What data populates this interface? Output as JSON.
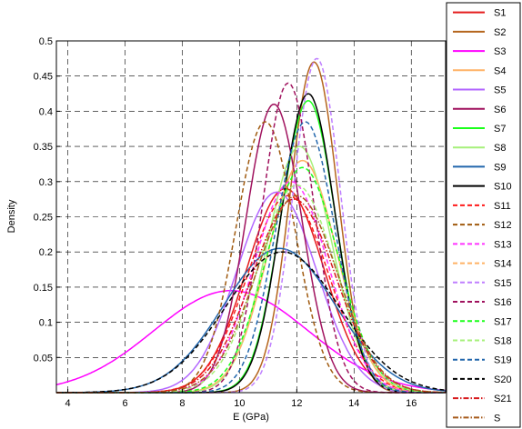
{
  "chart_data": {
    "type": "line",
    "xlabel": "E (GPa)",
    "ylabel": "Density",
    "xlim": [
      3.6,
      17.2
    ],
    "ylim": [
      0,
      0.5
    ],
    "xticks": [
      4,
      6,
      8,
      10,
      12,
      14,
      16
    ],
    "yticks": [
      0.05,
      0.1,
      0.15,
      0.2,
      0.25,
      0.3,
      0.35,
      0.4,
      0.45,
      0.5
    ],
    "xtick_labels": [
      "4",
      "6",
      "8",
      "10",
      "12",
      "14",
      "16"
    ],
    "ytick_labels": [
      "0.05",
      "0.1",
      "0.15",
      "0.2",
      "0.25",
      "0.3",
      "0.35",
      "0.4",
      "0.45",
      "0.5"
    ],
    "grid": true,
    "legend_position": "right, outside plot",
    "approximation": "each series is approximately normal; values are peak x (mean), peak density and approximate spread",
    "series": [
      {
        "name": "S1",
        "color": "#e41a1c",
        "style": "solid",
        "peak_x": 11.6,
        "peak_y": 0.29,
        "sd": 1.35
      },
      {
        "name": "S2",
        "color": "#b5651d",
        "style": "solid",
        "peak_x": 12.6,
        "peak_y": 0.47,
        "sd": 0.83
      },
      {
        "name": "S3",
        "color": "#ff00ff",
        "style": "solid",
        "peak_x": 9.7,
        "peak_y": 0.145,
        "sd": 2.7
      },
      {
        "name": "S4",
        "color": "#ffb266",
        "style": "solid",
        "peak_x": 12.2,
        "peak_y": 0.33,
        "sd": 1.2
      },
      {
        "name": "S5",
        "color": "#b266ff",
        "style": "solid",
        "peak_x": 11.3,
        "peak_y": 0.285,
        "sd": 1.4
      },
      {
        "name": "S6",
        "color": "#a0125e",
        "style": "solid",
        "peak_x": 11.2,
        "peak_y": 0.41,
        "sd": 0.97
      },
      {
        "name": "S7",
        "color": "#1aff1a",
        "style": "solid",
        "peak_x": 12.4,
        "peak_y": 0.415,
        "sd": 0.95
      },
      {
        "name": "S8",
        "color": "#a6f07a",
        "style": "solid",
        "peak_x": 12.1,
        "peak_y": 0.35,
        "sd": 1.13
      },
      {
        "name": "S9",
        "color": "#2166ac",
        "style": "solid",
        "peak_x": 11.4,
        "peak_y": 0.205,
        "sd": 1.95
      },
      {
        "name": "S10",
        "color": "#000000",
        "style": "solid",
        "peak_x": 12.4,
        "peak_y": 0.425,
        "sd": 0.93
      },
      {
        "name": "S11",
        "color": "#ff1a1a",
        "style": "dashed",
        "peak_x": 11.7,
        "peak_y": 0.28,
        "sd": 1.4
      },
      {
        "name": "S12",
        "color": "#a05a0f",
        "style": "dashed",
        "peak_x": 10.9,
        "peak_y": 0.385,
        "sd": 1.03
      },
      {
        "name": "S13",
        "color": "#ff33ff",
        "style": "dashed",
        "peak_x": 11.8,
        "peak_y": 0.3,
        "sd": 1.3
      },
      {
        "name": "S14",
        "color": "#ffb266",
        "style": "dashed",
        "peak_x": 12.2,
        "peak_y": 0.33,
        "sd": 1.2
      },
      {
        "name": "S15",
        "color": "#bf7fff",
        "style": "dashed",
        "peak_x": 12.7,
        "peak_y": 0.475,
        "sd": 0.82
      },
      {
        "name": "S16",
        "color": "#a0125e",
        "style": "dashed",
        "peak_x": 11.7,
        "peak_y": 0.44,
        "sd": 0.9
      },
      {
        "name": "S17",
        "color": "#1aff1a",
        "style": "dashed",
        "peak_x": 12.2,
        "peak_y": 0.32,
        "sd": 1.25
      },
      {
        "name": "S18",
        "color": "#a6f07a",
        "style": "dashed",
        "peak_x": 12.0,
        "peak_y": 0.295,
        "sd": 1.35
      },
      {
        "name": "S19",
        "color": "#2166ac",
        "style": "dashed",
        "peak_x": 12.3,
        "peak_y": 0.385,
        "sd": 1.03
      },
      {
        "name": "S20",
        "color": "#000000",
        "style": "dashed",
        "peak_x": 11.5,
        "peak_y": 0.2,
        "sd": 2.0
      },
      {
        "name": "S21",
        "color": "#d7191c",
        "style": "dashdot",
        "peak_x": 11.9,
        "peak_y": 0.275,
        "sd": 1.45
      },
      {
        "name": "S",
        "color": "#a65a1a",
        "style": "dashdot",
        "peak_x": 12.0,
        "peak_y": 0.28,
        "sd": 1.42
      }
    ]
  }
}
